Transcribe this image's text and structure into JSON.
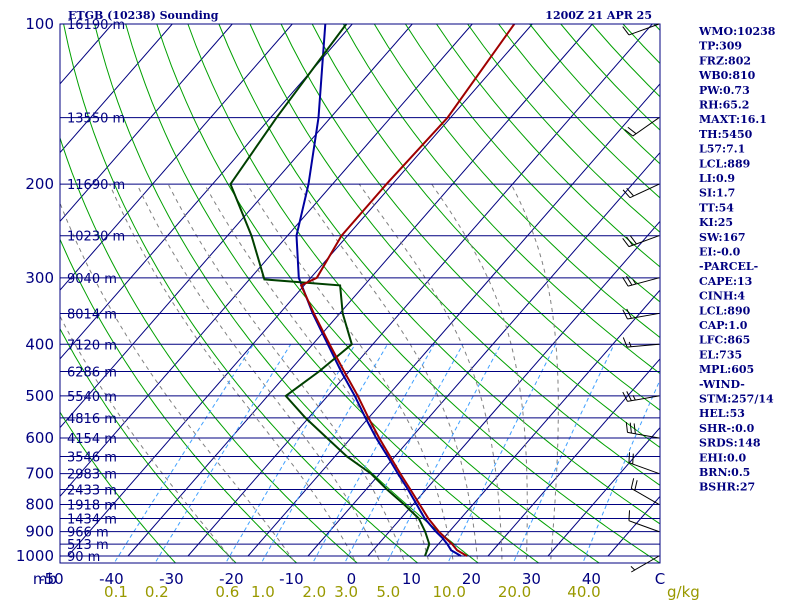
{
  "header": {
    "station": "ETGB (10238) Sounding",
    "time": "1200Z 21 APR 25"
  },
  "indices": [
    "WMO:10238",
    "TP:309",
    "FRZ:802",
    "WB0:810",
    "PW:0.73",
    "RH:65.2",
    "MAXT:16.1",
    "TH:5450",
    "L57:7.1",
    "LCL:889",
    "LI:0.9",
    "SI:1.7",
    "TT:54",
    "KI:25",
    "SW:167",
    "EI:-0.0",
    "-PARCEL-",
    "CAPE:13",
    "CINH:4",
    "LCL:890",
    "CAP:1.0",
    "LFC:865",
    "EL:735",
    "MPL:605",
    "-WIND-",
    "STM:257/14",
    "HEL:53",
    "SHR-:0.0",
    "SRDS:148",
    "EHI:0.0",
    "BRN:0.5",
    "BSHR:27"
  ],
  "chart_data": {
    "type": "line",
    "subtype": "skew-T log-p sounding",
    "pressure_axis": {
      "unit": "mb",
      "unit_label": "mb",
      "ticks": [
        100,
        200,
        300,
        400,
        500,
        600,
        700,
        800,
        900,
        1000
      ],
      "range": [
        100,
        1030
      ],
      "scale": "log"
    },
    "height_levels": [
      {
        "p": 100,
        "label": "16190 m"
      },
      {
        "p": 150,
        "label": "13550 m"
      },
      {
        "p": 200,
        "label": "11690 m"
      },
      {
        "p": 250,
        "label": "10230 m"
      },
      {
        "p": 300,
        "label": "9040 m"
      },
      {
        "p": 350,
        "label": "8014 m"
      },
      {
        "p": 400,
        "label": "7120 m"
      },
      {
        "p": 450,
        "label": "6286 m"
      },
      {
        "p": 500,
        "label": "5540 m"
      },
      {
        "p": 550,
        "label": "4816 m"
      },
      {
        "p": 600,
        "label": "4154 m"
      },
      {
        "p": 650,
        "label": "3546 m"
      },
      {
        "p": 700,
        "label": "2983 m"
      },
      {
        "p": 750,
        "label": "2433 m"
      },
      {
        "p": 800,
        "label": "1918 m"
      },
      {
        "p": 850,
        "label": "1434 m"
      },
      {
        "p": 900,
        "label": "966 m"
      },
      {
        "p": 950,
        "label": "513 m"
      },
      {
        "p": 1000,
        "label": "90 m"
      }
    ],
    "temperature_axis": {
      "unit": "C",
      "ticks": [
        -50,
        -40,
        -30,
        -20,
        -10,
        0,
        10,
        20,
        30,
        40
      ],
      "tick_labels": [
        "-50",
        "-40",
        "-30",
        "-20",
        "-10",
        "0",
        "10",
        "20",
        "30",
        "40"
      ],
      "end_label": "C",
      "skewed": true
    },
    "mixing_ratio_axis": {
      "unit": "g/kg",
      "unit_label": "g/kg",
      "values": [
        0.1,
        0.2,
        0.6,
        1.0,
        2.0,
        3.0,
        5.0,
        10.0,
        20.0,
        40.0
      ],
      "labels": [
        "0.1",
        "0.2",
        "0.6",
        "1.0",
        "2.0",
        "3.0",
        "5.0",
        "10.0",
        "20.0",
        "40.0"
      ]
    },
    "series": [
      {
        "role": "temperature",
        "color": "#0000a0",
        "points": [
          {
            "p": 1000,
            "t": 15.5
          },
          {
            "p": 975,
            "t": 13.0
          },
          {
            "p": 950,
            "t": 11.5
          },
          {
            "p": 925,
            "t": 9.8
          },
          {
            "p": 900,
            "t": 7.8
          },
          {
            "p": 850,
            "t": 4.0
          },
          {
            "p": 800,
            "t": 0.6
          },
          {
            "p": 750,
            "t": -3.0
          },
          {
            "p": 700,
            "t": -7.0
          },
          {
            "p": 650,
            "t": -11.2
          },
          {
            "p": 600,
            "t": -15.8
          },
          {
            "p": 550,
            "t": -20.5
          },
          {
            "p": 500,
            "t": -25.5
          },
          {
            "p": 450,
            "t": -31.3
          },
          {
            "p": 400,
            "t": -37.5
          },
          {
            "p": 350,
            "t": -44.5
          },
          {
            "p": 300,
            "t": -52.0
          },
          {
            "p": 250,
            "t": -58.5
          },
          {
            "p": 200,
            "t": -64.0
          },
          {
            "p": 150,
            "t": -72.0
          },
          {
            "p": 100,
            "t": -84.5
          }
        ]
      },
      {
        "role": "dewpoint",
        "color": "#004000",
        "points": [
          {
            "p": 1000,
            "t": 9.5
          },
          {
            "p": 950,
            "t": 8.5
          },
          {
            "p": 900,
            "t": 6.0
          },
          {
            "p": 850,
            "t": 3.0
          },
          {
            "p": 800,
            "t": -1.5
          },
          {
            "p": 750,
            "t": -6.5
          },
          {
            "p": 700,
            "t": -11.5
          },
          {
            "p": 650,
            "t": -18.0
          },
          {
            "p": 600,
            "t": -24.0
          },
          {
            "p": 550,
            "t": -30.5
          },
          {
            "p": 500,
            "t": -37.0
          },
          {
            "p": 450,
            "t": -35.0
          },
          {
            "p": 400,
            "t": -33.5
          },
          {
            "p": 350,
            "t": -39.5
          },
          {
            "p": 310,
            "t": -44.0
          },
          {
            "p": 302,
            "t": -57.5
          },
          {
            "p": 250,
            "t": -66.0
          },
          {
            "p": 200,
            "t": -77.0
          },
          {
            "p": 150,
            "t": -79.0
          },
          {
            "p": 100,
            "t": -81.0
          }
        ]
      },
      {
        "role": "virtual temperature",
        "color": "#a00000",
        "points": [
          {
            "p": 1000,
            "t": 16.5
          },
          {
            "p": 975,
            "t": 14.0
          },
          {
            "p": 950,
            "t": 12.3
          },
          {
            "p": 925,
            "t": 10.3
          },
          {
            "p": 900,
            "t": 8.3
          },
          {
            "p": 850,
            "t": 4.6
          },
          {
            "p": 800,
            "t": 1.1
          },
          {
            "p": 750,
            "t": -2.6
          },
          {
            "p": 700,
            "t": -6.6
          },
          {
            "p": 650,
            "t": -10.8
          },
          {
            "p": 600,
            "t": -15.3
          },
          {
            "p": 550,
            "t": -20.0
          },
          {
            "p": 500,
            "t": -25.0
          },
          {
            "p": 450,
            "t": -30.8
          },
          {
            "p": 400,
            "t": -37.2
          },
          {
            "p": 350,
            "t": -44.3
          },
          {
            "p": 310,
            "t": -50.5
          },
          {
            "p": 300,
            "t": -49.0
          },
          {
            "p": 250,
            "t": -51.0
          },
          {
            "p": 200,
            "t": -51.0
          },
          {
            "p": 150,
            "t": -50.5
          },
          {
            "p": 100,
            "t": -53.0
          }
        ]
      }
    ],
    "wind_barbs": [
      {
        "p": 1000,
        "dir": 240,
        "spd": 5
      },
      {
        "p": 900,
        "dir": 290,
        "spd": 10
      },
      {
        "p": 800,
        "dir": 300,
        "spd": 20
      },
      {
        "p": 700,
        "dir": 290,
        "spd": 20
      },
      {
        "p": 600,
        "dir": 280,
        "spd": 30
      },
      {
        "p": 500,
        "dir": 260,
        "spd": 25
      },
      {
        "p": 400,
        "dir": 265,
        "spd": 15
      },
      {
        "p": 350,
        "dir": 260,
        "spd": 20
      },
      {
        "p": 300,
        "dir": 255,
        "spd": 25
      },
      {
        "p": 250,
        "dir": 250,
        "spd": 30
      },
      {
        "p": 200,
        "dir": 245,
        "spd": 20
      },
      {
        "p": 150,
        "dir": 235,
        "spd": 20
      },
      {
        "p": 100,
        "dir": 250,
        "spd": 10
      }
    ],
    "colors": {
      "isobar": "#000080",
      "isotherm": "#00007f",
      "dry_adiabat": "#00a000",
      "moist_adiabat": "#808080",
      "mixing_ratio": "#40a0ff",
      "temperature": "#0000a0",
      "dewpoint": "#004000",
      "virtual_temperature": "#a00000",
      "text": "#000080",
      "mixing_labels": "#999900"
    }
  }
}
